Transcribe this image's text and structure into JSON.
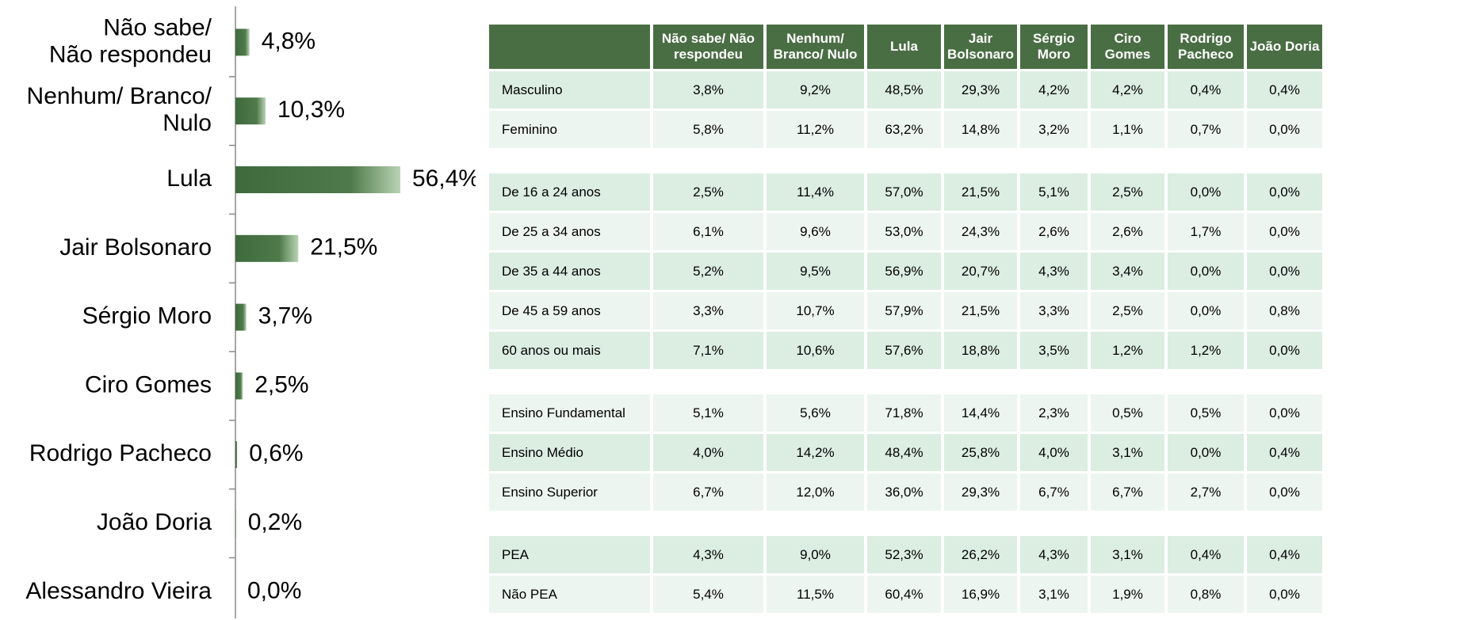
{
  "chart_data": {
    "type": "bar",
    "orientation": "horizontal",
    "categories": [
      "Não sabe/\nNão respondeu",
      "Nenhum/ Branco/\nNulo",
      "Lula",
      "Jair Bolsonaro",
      "Sérgio Moro",
      "Ciro Gomes",
      "Rodrigo Pacheco",
      "João Doria",
      "Alessandro Vieira"
    ],
    "values": [
      4.8,
      10.3,
      56.4,
      21.5,
      3.7,
      2.5,
      0.6,
      0.2,
      0.0
    ],
    "value_labels": [
      "4,8%",
      "10,3%",
      "56,4%",
      "21,5%",
      "3,7%",
      "2,5%",
      "0,6%",
      "0,2%",
      "0,0%"
    ],
    "color": "#3f6a3c"
  },
  "table": {
    "columns": [
      "Não sabe/ Não respondeu",
      "Nenhum/ Branco/ Nulo",
      "Lula",
      "Jair Bolsonaro",
      "Sérgio Moro",
      "Ciro Gomes",
      "Rodrigo Pacheco",
      "João Doria"
    ],
    "groups": [
      [
        [
          "Masculino",
          "3,8%",
          "9,2%",
          "48,5%",
          "29,3%",
          "4,2%",
          "4,2%",
          "0,4%",
          "0,4%"
        ],
        [
          "Feminino",
          "5,8%",
          "11,2%",
          "63,2%",
          "14,8%",
          "3,2%",
          "1,1%",
          "0,7%",
          "0,0%"
        ]
      ],
      [
        [
          "De 16 a 24 anos",
          "2,5%",
          "11,4%",
          "57,0%",
          "21,5%",
          "5,1%",
          "2,5%",
          "0,0%",
          "0,0%"
        ],
        [
          "De 25 a 34 anos",
          "6,1%",
          "9,6%",
          "53,0%",
          "24,3%",
          "2,6%",
          "2,6%",
          "1,7%",
          "0,0%"
        ],
        [
          "De 35 a 44 anos",
          "5,2%",
          "9,5%",
          "56,9%",
          "20,7%",
          "4,3%",
          "3,4%",
          "0,0%",
          "0,0%"
        ],
        [
          "De 45 a 59 anos",
          "3,3%",
          "10,7%",
          "57,9%",
          "21,5%",
          "3,3%",
          "2,5%",
          "0,0%",
          "0,8%"
        ],
        [
          "60 anos ou mais",
          "7,1%",
          "10,6%",
          "57,6%",
          "18,8%",
          "3,5%",
          "1,2%",
          "1,2%",
          "0,0%"
        ]
      ],
      [
        [
          "Ensino Fundamental",
          "5,1%",
          "5,6%",
          "71,8%",
          "14,4%",
          "2,3%",
          "0,5%",
          "0,5%",
          "0,0%"
        ],
        [
          "Ensino Médio",
          "4,0%",
          "14,2%",
          "48,4%",
          "25,8%",
          "4,0%",
          "3,1%",
          "0,0%",
          "0,4%"
        ],
        [
          "Ensino Superior",
          "6,7%",
          "12,0%",
          "36,0%",
          "29,3%",
          "6,7%",
          "6,7%",
          "2,7%",
          "0,0%"
        ]
      ],
      [
        [
          "PEA",
          "4,3%",
          "9,0%",
          "52,3%",
          "26,2%",
          "4,3%",
          "3,1%",
          "0,4%",
          "0,4%"
        ],
        [
          "Não PEA",
          "5,4%",
          "11,5%",
          "60,4%",
          "16,9%",
          "3,1%",
          "1,9%",
          "0,8%",
          "0,0%"
        ]
      ]
    ]
  }
}
